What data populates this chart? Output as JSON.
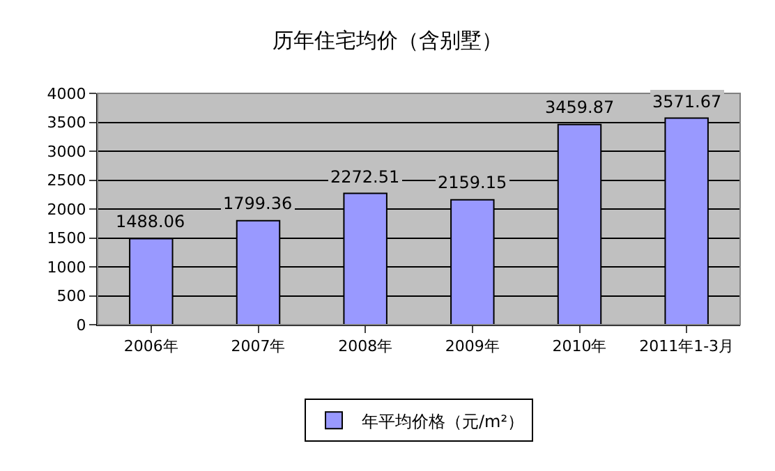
{
  "chart_data": {
    "type": "bar",
    "title": "历年住宅均价（含别墅）",
    "categories": [
      "2006年",
      "2007年",
      "2008年",
      "2009年",
      "2010年",
      "2011年1-3月"
    ],
    "series": [
      {
        "name": "年平均价格（元/m²）",
        "color": "#9999ff",
        "values": [
          1488.06,
          1799.36,
          2272.51,
          2159.15,
          3459.87,
          3571.67
        ]
      }
    ],
    "ylim": [
      0,
      4000
    ],
    "yticks": [
      0,
      500,
      1000,
      1500,
      2000,
      2500,
      3000,
      3500,
      4000
    ],
    "grid": "y",
    "legend": "bottom",
    "data_labels": true
  }
}
